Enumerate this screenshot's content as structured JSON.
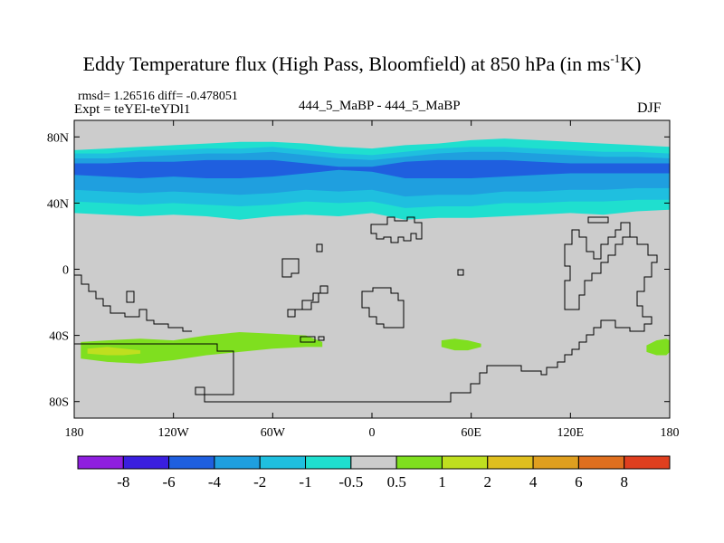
{
  "chart_data": {
    "type": "heatmap",
    "title_prefix": "Eddy Temperature flux (High Pass, Bloomfield) at 850 hPa (in ms",
    "title_sup": "-1",
    "title_suffix": "K)",
    "stats_text": "rmsd= 1.26516 diff= -0.478051",
    "expt_text": "Expt = teYEl-teYDl1",
    "center_label": "444_5_MaBP - 444_5_MaBP",
    "season": "DJF",
    "xlim": [
      -180,
      180
    ],
    "ylim": [
      -90,
      90
    ],
    "x_ticks": [
      {
        "value": -180,
        "label": "180"
      },
      {
        "value": -120,
        "label": "120W"
      },
      {
        "value": -60,
        "label": "60W"
      },
      {
        "value": 0,
        "label": "0"
      },
      {
        "value": 60,
        "label": "60E"
      },
      {
        "value": 120,
        "label": "120E"
      },
      {
        "value": 180,
        "label": "180"
      }
    ],
    "y_ticks": [
      {
        "value": 80,
        "label": "80N"
      },
      {
        "value": 40,
        "label": "40N"
      },
      {
        "value": 0,
        "label": "0"
      },
      {
        "value": -40,
        "label": "40S"
      },
      {
        "value": -80,
        "label": "80S"
      }
    ],
    "colorbar": {
      "colors": [
        "#8f1fdf",
        "#3a1fdf",
        "#1f5fdf",
        "#1f9fdf",
        "#1fbfdf",
        "#1fdfcf",
        "#cccccc",
        "#7fdf1f",
        "#bfdf1f",
        "#dfbf1f",
        "#df9f1f",
        "#df6f1f",
        "#df3f1f"
      ],
      "labels": [
        "-8",
        "-6",
        "-4",
        "-2",
        "-1",
        "-0.5",
        "0.5",
        "1",
        "2",
        "4",
        "6",
        "8"
      ]
    },
    "background_color": "#cccccc",
    "fields": [
      {
        "level": -1,
        "color": "#1fdfcf",
        "lon": [
          -180,
          -160,
          -140,
          -120,
          -100,
          -80,
          -60,
          -40,
          -20,
          0,
          20,
          40,
          60,
          80,
          100,
          120,
          140,
          160,
          180
        ],
        "north": [
          72,
          73,
          74,
          75,
          76,
          77,
          77,
          76,
          74,
          73,
          75,
          76,
          78,
          79,
          78,
          77,
          76,
          75,
          74
        ],
        "south": [
          34,
          33,
          32,
          33,
          32,
          30,
          32,
          33,
          32,
          34,
          30,
          31,
          31,
          32,
          33,
          34,
          33,
          35,
          36
        ]
      },
      {
        "level": -2,
        "color": "#1fbfdf",
        "lon": [
          -180,
          -160,
          -140,
          -120,
          -100,
          -80,
          -60,
          -40,
          -20,
          0,
          20,
          40,
          60,
          80,
          100,
          120,
          140,
          160,
          180
        ],
        "north": [
          70,
          70,
          72,
          72,
          73,
          73,
          74,
          72,
          70,
          69,
          71,
          73,
          74,
          74,
          73,
          72,
          71,
          71,
          70
        ],
        "south": [
          41,
          40,
          39,
          40,
          39,
          38,
          39,
          41,
          40,
          41,
          37,
          38,
          38,
          40,
          40,
          41,
          41,
          42,
          42
        ]
      },
      {
        "level": -2,
        "color": "#1f9fdf",
        "lon": [
          -180,
          -160,
          -140,
          -120,
          -100,
          -80,
          -60,
          -40,
          -20,
          0,
          20,
          40,
          60,
          80,
          100,
          120,
          140,
          160,
          180
        ],
        "north": [
          67,
          67,
          68,
          69,
          70,
          70,
          71,
          69,
          67,
          66,
          68,
          70,
          71,
          71,
          70,
          69,
          68,
          68,
          67
        ],
        "south": [
          48,
          47,
          46,
          47,
          46,
          45,
          46,
          48,
          47,
          48,
          44,
          45,
          45,
          47,
          47,
          48,
          48,
          49,
          49
        ]
      },
      {
        "level": -4,
        "color": "#1f5fdf",
        "lon": [
          -180,
          -160,
          -140,
          -120,
          -100,
          -80,
          -60,
          -40,
          -20,
          0,
          20,
          40,
          60,
          80,
          100,
          120,
          140,
          160,
          180
        ],
        "north": [
          64,
          64,
          65,
          65,
          66,
          66,
          66,
          64,
          62,
          62,
          65,
          66,
          66,
          66,
          65,
          64,
          64,
          64,
          64
        ],
        "south": [
          57,
          56,
          55,
          56,
          55,
          55,
          56,
          58,
          60,
          59,
          55,
          55,
          55,
          56,
          57,
          58,
          58,
          58,
          58
        ]
      },
      {
        "level": 1,
        "color": "#7fdf1f",
        "lon": [
          -176,
          -160,
          -140,
          -120,
          -100,
          -80,
          -60,
          -40,
          -30
        ],
        "north": [
          -44,
          -43,
          -42,
          -43,
          -40,
          -38,
          -39,
          -40,
          -44
        ],
        "south": [
          -54,
          -56,
          -57,
          -55,
          -52,
          -50,
          -48,
          -47,
          -47
        ]
      },
      {
        "level": 2,
        "color": "#bfdf1f",
        "lon": [
          -172,
          -160,
          -150,
          -140
        ],
        "north": [
          -48,
          -47,
          -48,
          -49
        ],
        "south": [
          -51,
          -52,
          -52,
          -51
        ]
      },
      {
        "level": 1,
        "color": "#7fdf1f",
        "lon": [
          42,
          50,
          58,
          66
        ],
        "north": [
          -43,
          -42,
          -43,
          -45
        ],
        "south": [
          -47,
          -49,
          -49,
          -47
        ]
      },
      {
        "level": 1,
        "color": "#7fdf1f",
        "lon": [
          166,
          172,
          178,
          180
        ],
        "north": [
          -46,
          -43,
          -42,
          -43
        ],
        "south": [
          -50,
          -52,
          -52,
          -50
        ]
      }
    ]
  }
}
